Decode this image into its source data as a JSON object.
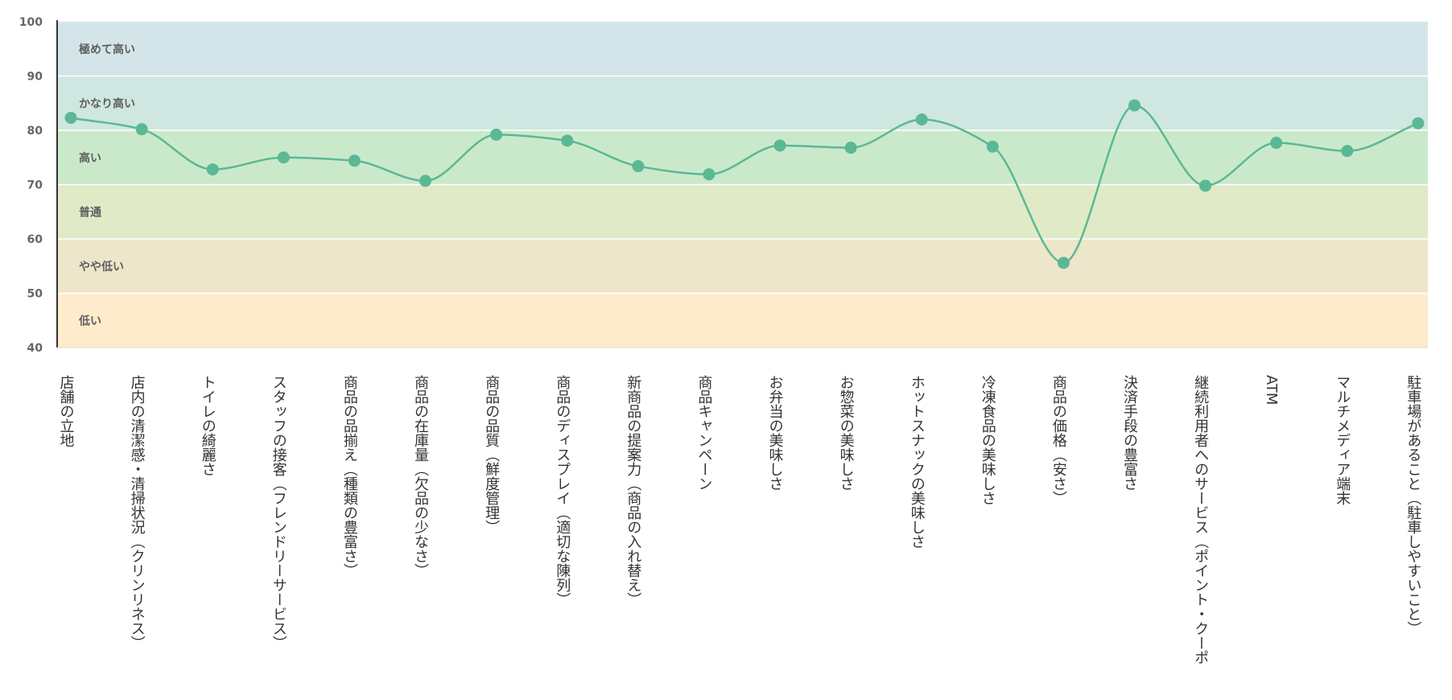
{
  "chart_data": {
    "type": "line",
    "title": "",
    "xlabel": "",
    "ylabel": "",
    "ylim": [
      40,
      100
    ],
    "yticks": [
      40,
      50,
      60,
      70,
      80,
      90,
      100
    ],
    "smooth": true,
    "grid": false,
    "colors": {
      "line": "#5bb894",
      "marker": "#5bb894",
      "axis": "#333333",
      "band_separator": "#ffffff"
    },
    "bands": [
      {
        "label": "極めて高い",
        "from": 90,
        "to": 100,
        "color": "#d3e5e9"
      },
      {
        "label": "かなり高い",
        "from": 80,
        "to": 90,
        "color": "#cfe7e0"
      },
      {
        "label": "高い",
        "from": 70,
        "to": 80,
        "color": "#cae9cb"
      },
      {
        "label": "普通",
        "from": 60,
        "to": 70,
        "color": "#e0eac7"
      },
      {
        "label": "やや低い",
        "from": 50,
        "to": 60,
        "color": "#ede6ca"
      },
      {
        "label": "低い",
        "from": 40,
        "to": 50,
        "color": "#fdebcc"
      }
    ],
    "categories": [
      "店舗の立地",
      "店内の清潔感・清掃状況（クリンリネス）",
      "トイレの綺麗さ",
      "スタッフの接客（フレンドリーサービス）",
      "商品の品揃え（種類の豊富さ）",
      "商品の在庫量（欠品の少なさ）",
      "商品の品質（鮮度管理）",
      "商品のディスプレイ（適切な陳列）",
      "新商品の提案力（商品の入れ替え）",
      "商品キャンペーン",
      "お弁当の美味しさ",
      "お惣菜の美味しさ",
      "ホットスナックの美味しさ",
      "冷凍食品の美味しさ",
      "商品の価格（安さ）",
      "決済手段の豊富さ",
      "継続利用者へのサービス（ポイント・クーポ",
      "ATM",
      "マルチメディア端末",
      "駐車場があること（駐車しやすいこと）"
    ],
    "series": [
      {
        "name": "",
        "values": [
          82.3,
          80.2,
          72.8,
          75.0,
          74.4,
          70.7,
          79.2,
          78.1,
          73.4,
          71.9,
          77.2,
          76.8,
          82.0,
          77.0,
          55.6,
          84.6,
          69.8,
          77.7,
          76.2,
          81.3
        ]
      }
    ]
  }
}
